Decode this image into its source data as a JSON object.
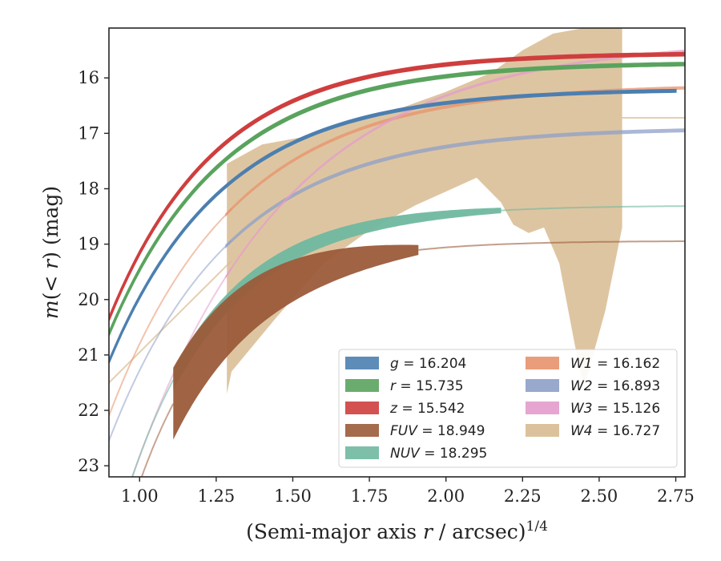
{
  "chart_data": {
    "type": "area",
    "xlabel": "(Semi-major axis r / arcsec)^{1/4}",
    "xlabel_parts": {
      "pre": "(Semi-major axis ",
      "var": "r",
      "post": " / arcsec)",
      "sup": "1/4"
    },
    "ylabel": "m(< r) (mag)",
    "ylabel_parts": {
      "pre": "m(",
      "mid": "< r",
      "post": ") (mag)"
    },
    "xlim": [
      0.9,
      2.78
    ],
    "ylim": [
      23.2,
      15.1
    ],
    "y_inverted": true,
    "grid": false,
    "legend_placement": "lower-right",
    "x_ticks": [
      "1.00",
      "1.25",
      "1.50",
      "1.75",
      "2.00",
      "2.25",
      "2.50",
      "2.75"
    ],
    "x_tick_values": [
      1.0,
      1.25,
      1.5,
      1.75,
      2.0,
      2.25,
      2.5,
      2.75
    ],
    "y_ticks": [
      "16",
      "17",
      "18",
      "19",
      "20",
      "21",
      "22",
      "23"
    ],
    "y_tick_values": [
      16,
      17,
      18,
      19,
      20,
      21,
      22,
      23
    ],
    "series": [
      {
        "id": "g",
        "band": "g",
        "total": "16.204",
        "color": "#4c7fb0",
        "x_start": 0.9,
        "x_end": 2.75,
        "y_inf": 16.2,
        "y_ref": 21.12,
        "k": 2.7,
        "ext_x_end": 2.78,
        "ext_y_end": 16.2,
        "width": 0.04
      },
      {
        "id": "r",
        "band": "r",
        "total": "15.735",
        "color": "#5aa35e",
        "x_start": 0.9,
        "x_end": 2.78,
        "y_inf": 15.72,
        "y_ref": 20.62,
        "k": 2.7,
        "ext_x_end": 2.78,
        "ext_y_end": 15.72,
        "width": 0.05
      },
      {
        "id": "z",
        "band": "z",
        "total": "15.542",
        "color": "#cf3e3e",
        "x_start": 0.9,
        "x_end": 2.78,
        "y_inf": 15.55,
        "y_ref": 20.35,
        "k": 2.85,
        "ext_x_end": 2.78,
        "ext_y_end": 15.55,
        "width": 0.05
      },
      {
        "id": "fuv",
        "band": "FUV",
        "total": "18.949",
        "color": "#9b5b3a",
        "x_start": 1.11,
        "x_end": 1.91,
        "y_inf": 18.94,
        "y_ref": 25.2,
        "k": 3.6,
        "ext_x_start": 0.9,
        "ext_x_end": 2.78,
        "width_start": 1.3,
        "width_end": 0.18
      },
      {
        "id": "nuv",
        "band": "NUV",
        "total": "18.295",
        "color": "#6fb8a0",
        "x_start": 1.11,
        "x_end": 2.18,
        "y_inf": 18.3,
        "y_ref": 24.6,
        "k": 3.3,
        "ext_x_start": 0.9,
        "ext_x_end": 2.78,
        "width_start": 0.38,
        "width_end": 0.1
      },
      {
        "id": "w1",
        "band": "W1",
        "total": "16.162",
        "color": "#e8926b",
        "x_start": 0.9,
        "x_end": 2.78,
        "y_inf": 16.12,
        "y_ref": 22.1,
        "k": 2.45,
        "width": 0.06
      },
      {
        "id": "w2",
        "band": "W2",
        "total": "16.893",
        "color": "#8e9fc8",
        "x_start": 0.9,
        "x_end": 2.78,
        "y_inf": 16.9,
        "y_ref": 22.55,
        "k": 2.55,
        "width": 0.07
      },
      {
        "id": "w3",
        "band": "W3",
        "total": "15.126",
        "color": "#e39ccc",
        "x_start": 0.9,
        "x_end": 2.78,
        "y_inf": 15.3,
        "y_ref": 24.5,
        "k": 2.0,
        "width": 0.05
      },
      {
        "id": "w4",
        "band": "W4",
        "total": "16.727",
        "color": "#d8bb91",
        "x_start": 1.285,
        "x_end": 2.575,
        "ext_x_start": 0.9,
        "ext_x_end": 2.78,
        "ext_y_end": 16.72,
        "upper": [
          [
            1.285,
            17.55
          ],
          [
            1.4,
            17.2
          ],
          [
            1.55,
            17.05
          ],
          [
            1.7,
            16.75
          ],
          [
            1.85,
            16.55
          ],
          [
            2.0,
            16.25
          ],
          [
            2.15,
            15.9
          ],
          [
            2.25,
            15.5
          ],
          [
            2.35,
            15.2
          ],
          [
            2.45,
            15.1
          ],
          [
            2.575,
            15.1
          ]
        ],
        "lower": [
          [
            1.285,
            21.7
          ],
          [
            1.3,
            21.3
          ],
          [
            1.45,
            20.3
          ],
          [
            1.6,
            19.35
          ],
          [
            1.75,
            18.75
          ],
          [
            1.9,
            18.3
          ],
          [
            2.0,
            18.05
          ],
          [
            2.1,
            17.8
          ],
          [
            2.18,
            18.25
          ],
          [
            2.22,
            18.65
          ],
          [
            2.27,
            18.8
          ],
          [
            2.32,
            18.7
          ],
          [
            2.37,
            19.35
          ],
          [
            2.42,
            20.8
          ],
          [
            2.45,
            21.6
          ],
          [
            2.48,
            21.0
          ],
          [
            2.52,
            20.2
          ],
          [
            2.575,
            18.7
          ]
        ],
        "center": [
          [
            0.9,
            21.5
          ],
          [
            1.1,
            20.4
          ],
          [
            1.3,
            19.3
          ],
          [
            1.5,
            18.3
          ],
          [
            1.7,
            17.5
          ],
          [
            1.9,
            17.1
          ],
          [
            2.1,
            16.85
          ],
          [
            2.3,
            16.75
          ],
          [
            2.5,
            16.72
          ],
          [
            2.78,
            16.72
          ]
        ]
      }
    ],
    "legend": [
      {
        "band": "g",
        "total": "16.204",
        "color": "#4c7fb0"
      },
      {
        "band": "r",
        "total": "15.735",
        "color": "#5aa35e"
      },
      {
        "band": "z",
        "total": "15.542",
        "color": "#cf3e3e"
      },
      {
        "band": "FUV",
        "total": "18.949",
        "color": "#9b5b3a"
      },
      {
        "band": "NUV",
        "total": "18.295",
        "color": "#6fb8a0"
      },
      {
        "band": "W1",
        "total": "16.162",
        "color": "#e8926b"
      },
      {
        "band": "W2",
        "total": "16.893",
        "color": "#8e9fc8"
      },
      {
        "band": "W3",
        "total": "15.126",
        "color": "#e39ccc"
      },
      {
        "band": "W4",
        "total": "16.727",
        "color": "#d8bb91"
      }
    ]
  }
}
